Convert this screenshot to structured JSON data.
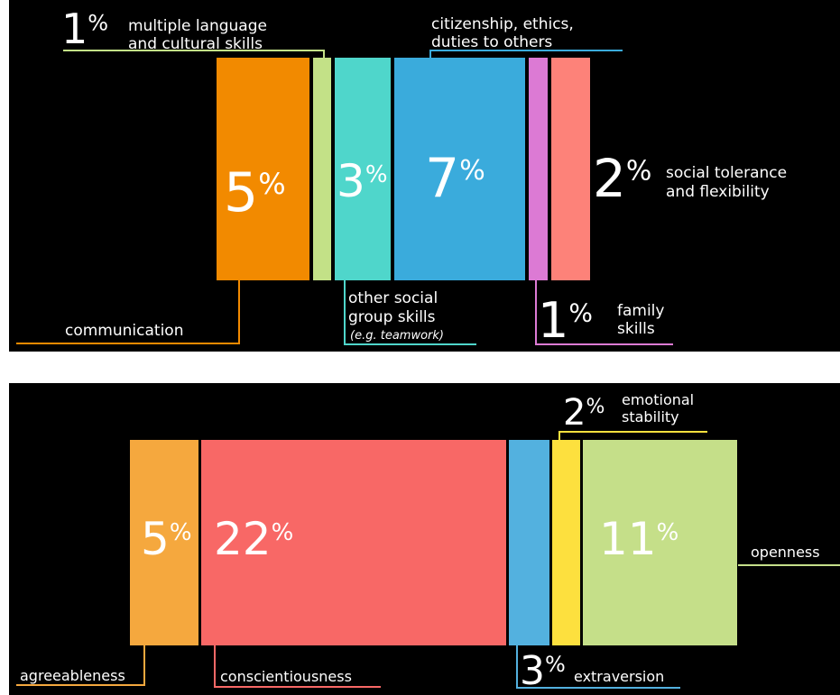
{
  "chart_data": [
    {
      "type": "bar",
      "series": [
        {
          "id": "communication",
          "value": 5,
          "value_label": "5",
          "label": [
            "communication"
          ],
          "color": "#f28a00"
        },
        {
          "id": "multilang",
          "value": 1,
          "value_label": "1",
          "label": [
            "multiple language",
            "and cultural skills"
          ],
          "color": "#c3e187"
        },
        {
          "id": "group",
          "value": 3,
          "value_label": "3",
          "label": [
            "other social",
            "group skills"
          ],
          "note": "(e.g. teamwork)",
          "color": "#4fd6cb"
        },
        {
          "id": "citizenship",
          "value": 7,
          "value_label": "7",
          "label": [
            "citizenship, ethics,",
            "duties to others"
          ],
          "color": "#3aabdc"
        },
        {
          "id": "family",
          "value": 1,
          "value_label": "1",
          "label": [
            "family",
            "skills"
          ],
          "color": "#dc7ad4"
        },
        {
          "id": "tolerance",
          "value": 2,
          "value_label": "2",
          "label": [
            "social tolerance",
            "and flexibility"
          ],
          "color": "#fd8279"
        }
      ]
    },
    {
      "type": "bar",
      "series": [
        {
          "id": "agreeableness",
          "value": 5,
          "value_label": "5",
          "label": [
            "agreeableness"
          ],
          "color": "#f5a83e"
        },
        {
          "id": "conscientiousness",
          "value": 22,
          "value_label": "22",
          "label": [
            "conscientiousness"
          ],
          "color": "#f86866"
        },
        {
          "id": "extraversion",
          "value": 3,
          "value_label": "3",
          "label": [
            "extraversion"
          ],
          "color": "#53b1df"
        },
        {
          "id": "emotional",
          "value": 2,
          "value_label": "2",
          "label": [
            "emotional",
            "stability"
          ],
          "color": "#fde03e"
        },
        {
          "id": "openness",
          "value": 11,
          "value_label": "11",
          "label": [
            "openness"
          ],
          "color": "#c5df89"
        }
      ]
    }
  ],
  "percent_sign": "%"
}
